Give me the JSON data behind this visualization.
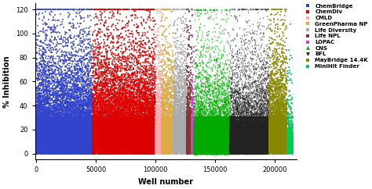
{
  "libraries": [
    {
      "name": "ChemBridge",
      "color": "#3344cc",
      "marker": "s",
      "x_start": 0,
      "x_end": 47000,
      "n_points": 50000,
      "size": 1.5,
      "alpha": 0.7
    },
    {
      "name": "ChemDiv",
      "color": "#dd0000",
      "marker": "s",
      "x_start": 47000,
      "x_end": 100000,
      "n_points": 55000,
      "size": 1.5,
      "alpha": 0.7
    },
    {
      "name": "CMLD",
      "color": "#ffaaaa",
      "marker": "s",
      "x_start": 100000,
      "x_end": 105000,
      "n_points": 4000,
      "size": 1.5,
      "alpha": 0.8
    },
    {
      "name": "GreenPharma NP",
      "color": "#ddaa44",
      "marker": "s",
      "x_start": 105000,
      "x_end": 115000,
      "n_points": 8000,
      "size": 1.5,
      "alpha": 0.8
    },
    {
      "name": "Life Diversity",
      "color": "#aaaaaa",
      "marker": "s",
      "x_start": 115000,
      "x_end": 126000,
      "n_points": 12000,
      "size": 1.5,
      "alpha": 0.7
    },
    {
      "name": "Life NPL",
      "color": "#883333",
      "marker": "s",
      "x_start": 126000,
      "x_end": 130000,
      "n_points": 3000,
      "size": 2.0,
      "alpha": 0.8
    },
    {
      "name": "LOPAC",
      "color": "#cc44cc",
      "marker": "s",
      "x_start": 130000,
      "x_end": 132000,
      "n_points": 1200,
      "size": 3.0,
      "alpha": 0.9
    },
    {
      "name": "CNS",
      "color": "#00aa00",
      "marker": "^",
      "x_start": 132000,
      "x_end": 162000,
      "n_points": 20000,
      "size": 2.5,
      "alpha": 0.7
    },
    {
      "name": "BFL",
      "color": "#222222",
      "marker": "v",
      "x_start": 162000,
      "x_end": 195000,
      "n_points": 25000,
      "size": 2.0,
      "alpha": 0.7
    },
    {
      "name": "MayBridge 14.4K",
      "color": "#888800",
      "marker": "s",
      "x_start": 195000,
      "x_end": 210000,
      "n_points": 14400,
      "size": 1.5,
      "alpha": 0.7
    },
    {
      "name": "MiniHit Finder",
      "color": "#00cc55",
      "marker": "s",
      "x_start": 210000,
      "x_end": 215000,
      "n_points": 800,
      "size": 1.5,
      "alpha": 0.8
    }
  ],
  "xlim": [
    -1000,
    218000
  ],
  "ylim": [
    -5,
    125
  ],
  "yticks": [
    0,
    20,
    40,
    60,
    80,
    100,
    120
  ],
  "xticks": [
    0,
    50000,
    100000,
    150000,
    200000
  ],
  "xlabel": "Well number",
  "ylabel": "% Inhibition",
  "figsize": [
    4.74,
    2.42
  ],
  "dpi": 100,
  "background_color": "#ffffff"
}
